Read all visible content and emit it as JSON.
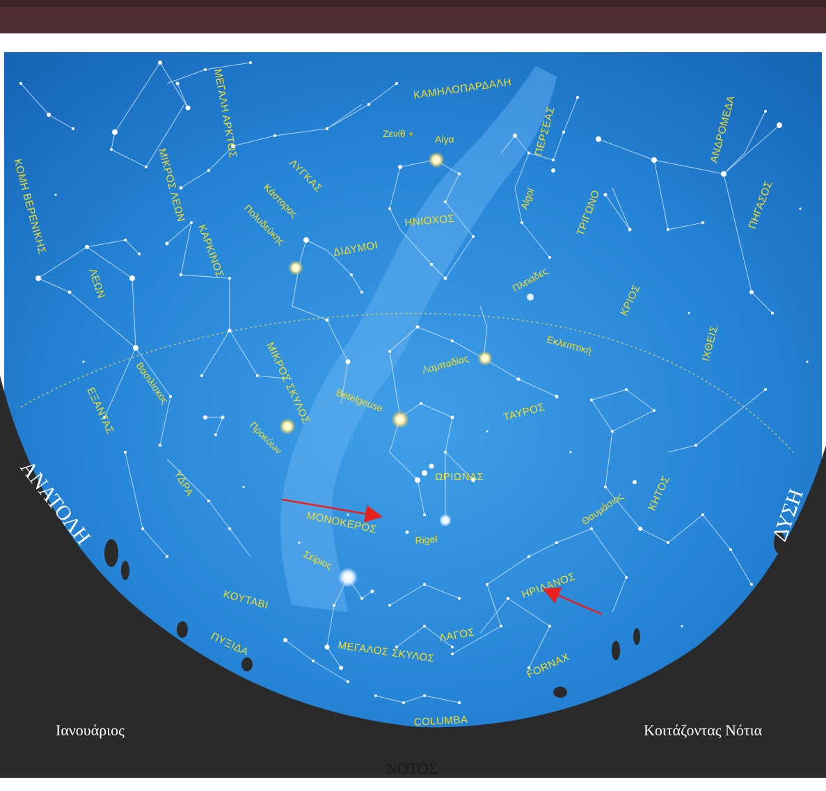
{
  "colors": {
    "sky": "#1f7fd4",
    "sky_light": "#3fa6ee",
    "horizon": "#2a2a2a",
    "label": "#f2df2e",
    "arrow": "#e8201e",
    "header": "#4a2a30"
  },
  "corners": {
    "left": "Ιανουάριος",
    "right": "Κοιτάζοντας Νότια",
    "bottom": "ΝΟΤΟΣ"
  },
  "directions": {
    "east": "ΑΝΑΤΟΛΗ",
    "west": "ΔΥΣΗ"
  },
  "constellations": {
    "megali_arktos": "ΜΕΓΑΛΗ ΑΡΚΤΟΣ",
    "kamilopardali": "ΚΑΜΗΛΟΠΑΡΔΑΛΗ",
    "andromeda": "ΑΝΔΡΟΜΕΔΑ",
    "komi_berenikis": "ΚΟΜΗ ΒΕΡΕΝΙΚΗΣ",
    "mikros_leon": "ΜΙΚΡΟΣ ΛΕΩΝ",
    "lygkas": "ΛΥΓΚΑΣ",
    "perseas": "ΠΕΡΣΕΑΣ",
    "pigasos": "ΠΗΓΑΣΟΣ",
    "karkinos": "ΚΑΡΚΙΝΟΣ",
    "iniochos": "ΗΝΙΟΧΟΣ",
    "trigono": "ΤΡΙΓΩΝΟ",
    "leon": "ΛΕΩΝ",
    "didymoi": "ΔΙΔΥΜΟΙ",
    "krios": "ΚΡΙΟΣ",
    "ichtheis": "ΙΧΘΕΙΣ",
    "mikros_skylos": "ΜΙΚΡΟΣ ΣΚΥΛΟΣ",
    "exantas": "ΕΞΑΝΤΑΣ",
    "tavros": "ΤΑΥΡΟΣ",
    "oriwnas": "ΩΡΙΩΝΑΣ",
    "ydra": "ΥΔΡΑ",
    "ketos": "ΚΗΤΟΣ",
    "monokeros": "ΜΟΝΟΚΕΡΟΣ",
    "iridanos": "ΗΡΙΔΑΝΟΣ",
    "koutavi": "ΚΟΥΤΑΒΙ",
    "pyxida": "ΠΥΞΙΔΑ",
    "megalos_skylos": "ΜΕΓΑΛΟΣ ΣΚΥΛΟΣ",
    "lagos": "ΛΑΓΟΣ",
    "fornax": "FORNAX",
    "columba": "COLUMBA"
  },
  "stars": {
    "zenith": "Ζενίθ +",
    "aiga": "Αίγα",
    "kastoras": "Κάστορας",
    "polydeukis": "Πολυδεύκης",
    "algol": "Algol",
    "pleiades": "Πλειάδες",
    "ekleiptiki": "Εκλειπτική",
    "lampadias": "Λαμπαδίας",
    "vasiliskos": "Βασιλίσκος",
    "betelgeuse": "Betelgeuse",
    "prokyon": "Προκύων",
    "thaumasios": "Θαυμάσιος",
    "rigel": "Rigel",
    "seirios": "Σείριος"
  }
}
